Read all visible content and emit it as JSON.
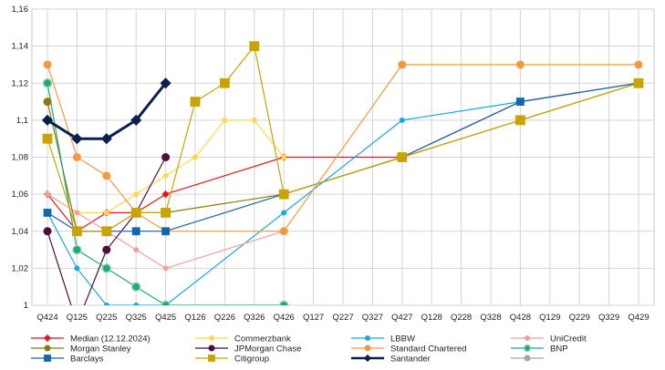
{
  "chart_data": {
    "type": "line",
    "categories": [
      "Q424",
      "Q125",
      "Q225",
      "Q325",
      "Q425",
      "Q126",
      "Q226",
      "Q326",
      "Q426",
      "Q127",
      "Q227",
      "Q327",
      "Q427",
      "Q128",
      "Q228",
      "Q328",
      "Q428",
      "Q129",
      "Q229",
      "Q329",
      "Q429"
    ],
    "ylim": [
      1,
      1.16
    ],
    "yticks": [
      "1",
      "1,02",
      "1,04",
      "1,06",
      "1,08",
      "1,1",
      "1,12",
      "1,14",
      "1,16"
    ],
    "grid": true,
    "legend_position": "bottom",
    "series": [
      {
        "name": "Median (12.12.2024)",
        "color": "#e8131b",
        "marker": "diamond",
        "width": 1.2,
        "size": 3.5,
        "points": [
          [
            0,
            1.06
          ],
          [
            1,
            1.04
          ],
          [
            2,
            1.05
          ],
          [
            3,
            1.05
          ],
          [
            4,
            1.06
          ],
          [
            8,
            1.08
          ],
          [
            12,
            1.08
          ],
          [
            16,
            1.11
          ],
          [
            20,
            1.12
          ]
        ]
      },
      {
        "name": "Commerzbank",
        "color": "#ffd84d",
        "marker": "circle",
        "width": 1.2,
        "size": 3,
        "points": [
          [
            0,
            1.06
          ],
          [
            1,
            1.05
          ],
          [
            2,
            1.05
          ],
          [
            3,
            1.06
          ],
          [
            4,
            1.07
          ],
          [
            5,
            1.08
          ],
          [
            6,
            1.1
          ],
          [
            7,
            1.1
          ],
          [
            8,
            1.08
          ]
        ]
      },
      {
        "name": "LBBW",
        "color": "#19a9e1",
        "marker": "circle",
        "width": 1.2,
        "size": 3,
        "points": [
          [
            0,
            1.05
          ],
          [
            1,
            1.02
          ],
          [
            2,
            1.0
          ],
          [
            3,
            1.0
          ],
          [
            4,
            1.0
          ],
          [
            8,
            1.05
          ],
          [
            12,
            1.1
          ],
          [
            16,
            1.11
          ],
          [
            20,
            1.12
          ]
        ]
      },
      {
        "name": "UniCredit",
        "color": "#f4a09a",
        "marker": "circle",
        "width": 1.2,
        "size": 3,
        "points": [
          [
            0,
            1.06
          ],
          [
            1,
            1.05
          ],
          [
            2,
            1.04
          ],
          [
            3,
            1.03
          ],
          [
            4,
            1.02
          ],
          [
            8,
            1.04
          ]
        ]
      },
      {
        "name": "Morgan Stanley",
        "color": "#8b7a12",
        "marker": "circle",
        "width": 1.2,
        "size": 4.5,
        "points": [
          [
            0,
            1.11
          ],
          [
            1,
            1.04
          ],
          [
            2,
            1.04
          ],
          [
            3,
            1.05
          ],
          [
            4,
            1.05
          ],
          [
            8,
            1.06
          ],
          [
            12,
            1.08
          ],
          [
            16,
            1.1
          ],
          [
            20,
            1.12
          ]
        ]
      },
      {
        "name": "JPMorgan Chase",
        "color": "#4b0e3d",
        "marker": "circle",
        "width": 1.2,
        "size": 4.5,
        "points": [
          [
            0,
            1.04
          ],
          [
            1,
            0.99
          ],
          [
            2,
            1.03
          ],
          [
            3,
            1.05
          ],
          [
            4,
            1.08
          ]
        ]
      },
      {
        "name": "Standard Chartered",
        "color": "#f29a3c",
        "marker": "circle",
        "width": 1.2,
        "size": 4.5,
        "points": [
          [
            0,
            1.13
          ],
          [
            1,
            1.08
          ],
          [
            2,
            1.07
          ],
          [
            3,
            1.05
          ],
          [
            4,
            1.04
          ],
          [
            8,
            1.04
          ],
          [
            12,
            1.13
          ],
          [
            16,
            1.13
          ],
          [
            20,
            1.13
          ]
        ]
      },
      {
        "name": "BNP",
        "color": "#1fa774",
        "marker": "ringcircle",
        "width": 1.2,
        "size": 4.5,
        "points": [
          [
            0,
            1.12
          ],
          [
            1,
            1.03
          ],
          [
            2,
            1.02
          ],
          [
            3,
            1.01
          ],
          [
            4,
            1.0
          ],
          [
            8,
            1.0
          ]
        ]
      },
      {
        "name": "Barclays",
        "color": "#1466ad",
        "marker": "square",
        "width": 1.2,
        "size": 4,
        "points": [
          [
            0,
            1.05
          ],
          [
            1,
            1.04
          ],
          [
            2,
            1.04
          ],
          [
            3,
            1.04
          ],
          [
            4,
            1.04
          ],
          [
            8,
            1.06
          ],
          [
            12,
            1.08
          ],
          [
            16,
            1.11
          ],
          [
            20,
            1.12
          ]
        ]
      },
      {
        "name": "Citigroup",
        "color": "#c9a400",
        "marker": "square",
        "width": 1.2,
        "size": 5,
        "points": [
          [
            0,
            1.09
          ],
          [
            1,
            1.04
          ],
          [
            2,
            1.04
          ],
          [
            3,
            1.05
          ],
          [
            4,
            1.05
          ],
          [
            5,
            1.11
          ],
          [
            6,
            1.12
          ],
          [
            7,
            1.14
          ],
          [
            8,
            1.06
          ],
          [
            12,
            1.08
          ],
          [
            16,
            1.1
          ],
          [
            20,
            1.12
          ]
        ]
      },
      {
        "name": "Santander",
        "color": "#0c1f4f",
        "marker": "diamond",
        "width": 3,
        "size": 5.5,
        "points": [
          [
            0,
            1.1
          ],
          [
            1,
            1.09
          ],
          [
            2,
            1.09
          ],
          [
            3,
            1.1
          ],
          [
            4,
            1.12
          ]
        ]
      },
      {
        "name": "",
        "color": "#a6a6a6",
        "marker": "circle",
        "width": 1.2,
        "size": 4,
        "points": []
      }
    ]
  }
}
